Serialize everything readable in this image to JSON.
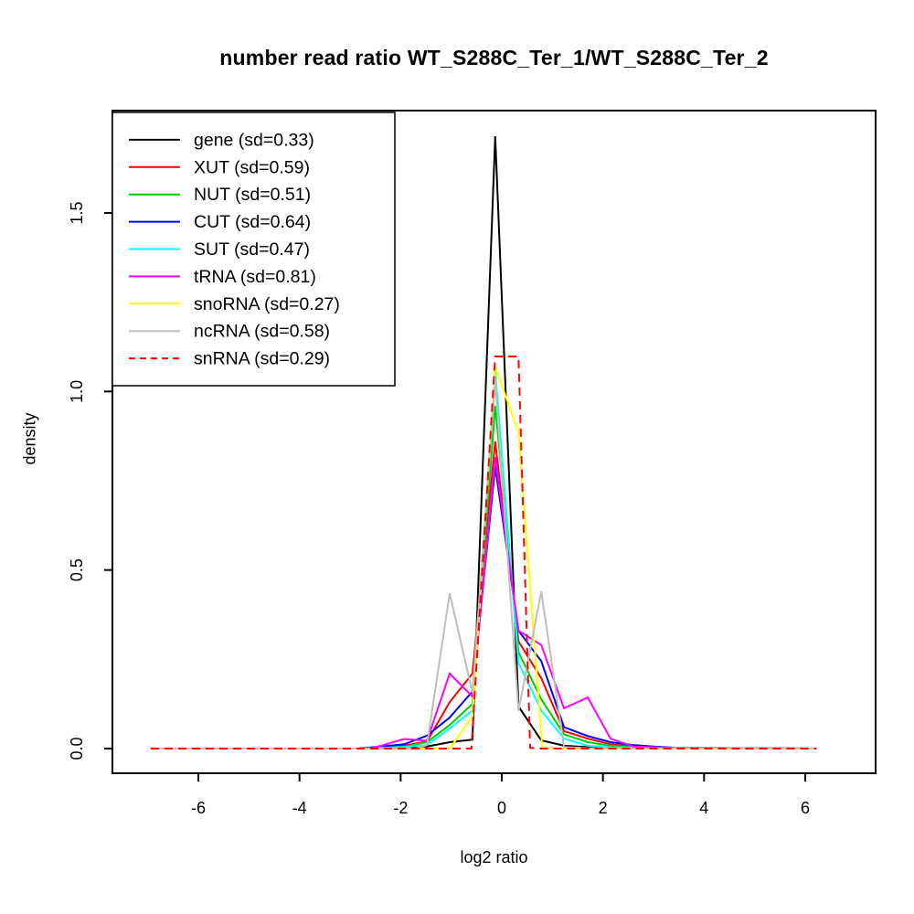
{
  "chart_data": {
    "type": "line",
    "title": "number read ratio WT_S288C_Ter_1/WT_S288C_Ter_2",
    "xlabel": "log2 ratio",
    "ylabel": "density",
    "xlim": [
      -7.7,
      7.4
    ],
    "ylim": [
      0,
      1.86
    ],
    "x_ticks": [
      -6,
      -4,
      -2,
      0,
      2,
      4,
      6
    ],
    "x_tick_labels": [
      "-6",
      "-4",
      "-2",
      "0",
      "2",
      "4",
      "6"
    ],
    "y_ticks": [
      0.0,
      0.5,
      1.0,
      1.5
    ],
    "y_tick_labels": [
      "0.0",
      "0.5",
      "1.0",
      "1.5"
    ],
    "grid": false,
    "legend_position": "top-left",
    "axis_color": "#000000",
    "background_color": "#FFFFFF",
    "series": [
      {
        "name": "gene",
        "sd": "0.33",
        "label": "gene (sd=0.33)",
        "color": "#000000",
        "dash": false,
        "points": [
          [
            -6.94,
            0
          ],
          [
            -2.84,
            0
          ],
          [
            -2.39,
            0.002
          ],
          [
            -1.93,
            0.004
          ],
          [
            -1.48,
            0.006
          ],
          [
            -1.03,
            0.018
          ],
          [
            -0.58,
            0.025
          ],
          [
            -0.13,
            1.715
          ],
          [
            0.33,
            0.118
          ],
          [
            0.78,
            0.023
          ],
          [
            1.23,
            0.008
          ],
          [
            1.7,
            0.004
          ],
          [
            2.15,
            0.002
          ],
          [
            2.6,
            0.001
          ],
          [
            6.22,
            0
          ]
        ]
      },
      {
        "name": "XUT",
        "sd": "0.59",
        "label": "XUT (sd=0.59)",
        "color": "#FF0000",
        "dash": false,
        "points": [
          [
            -6.94,
            0
          ],
          [
            -2.84,
            0
          ],
          [
            -2.39,
            0.005
          ],
          [
            -1.93,
            0.008
          ],
          [
            -1.48,
            0.02
          ],
          [
            -1.03,
            0.13
          ],
          [
            -0.58,
            0.21
          ],
          [
            -0.13,
            0.86
          ],
          [
            0.33,
            0.3
          ],
          [
            0.78,
            0.197
          ],
          [
            1.23,
            0.049
          ],
          [
            1.7,
            0.028
          ],
          [
            2.15,
            0.012
          ],
          [
            2.6,
            0.005
          ],
          [
            3.06,
            0.002
          ],
          [
            3.51,
            0.001
          ],
          [
            6.22,
            0
          ]
        ]
      },
      {
        "name": "NUT",
        "sd": "0.51",
        "label": "NUT (sd=0.51)",
        "color": "#00CD00",
        "dash": false,
        "points": [
          [
            -6.94,
            0
          ],
          [
            -2.84,
            0
          ],
          [
            -2.39,
            0.003
          ],
          [
            -1.93,
            0.005
          ],
          [
            -1.48,
            0.018
          ],
          [
            -1.03,
            0.066
          ],
          [
            -0.58,
            0.125
          ],
          [
            -0.13,
            0.96
          ],
          [
            0.33,
            0.27
          ],
          [
            0.78,
            0.138
          ],
          [
            1.23,
            0.04
          ],
          [
            1.7,
            0.018
          ],
          [
            2.15,
            0.008
          ],
          [
            2.6,
            0.003
          ],
          [
            6.22,
            0
          ]
        ]
      },
      {
        "name": "CUT",
        "sd": "0.64",
        "label": "CUT (sd=0.64)",
        "color": "#0000FF",
        "dash": false,
        "points": [
          [
            -6.94,
            0
          ],
          [
            -2.84,
            0
          ],
          [
            -2.39,
            0.006
          ],
          [
            -1.93,
            0.012
          ],
          [
            -1.48,
            0.036
          ],
          [
            -1.03,
            0.087
          ],
          [
            -0.58,
            0.16
          ],
          [
            -0.13,
            0.79
          ],
          [
            0.33,
            0.33
          ],
          [
            0.78,
            0.245
          ],
          [
            1.23,
            0.06
          ],
          [
            1.7,
            0.035
          ],
          [
            2.15,
            0.018
          ],
          [
            2.6,
            0.01
          ],
          [
            3.06,
            0.005
          ],
          [
            3.51,
            0.002
          ],
          [
            6.22,
            0
          ]
        ]
      },
      {
        "name": "SUT",
        "sd": "0.47",
        "label": "SUT (sd=0.47)",
        "color": "#00FFFF",
        "dash": false,
        "points": [
          [
            -6.94,
            0
          ],
          [
            -2.84,
            0
          ],
          [
            -2.39,
            0.002
          ],
          [
            -1.93,
            0.004
          ],
          [
            -1.48,
            0.01
          ],
          [
            -1.03,
            0.056
          ],
          [
            -0.58,
            0.107
          ],
          [
            -0.13,
            1.06
          ],
          [
            0.33,
            0.24
          ],
          [
            0.78,
            0.107
          ],
          [
            1.23,
            0.028
          ],
          [
            1.7,
            0.008
          ],
          [
            2.15,
            0.003
          ],
          [
            6.22,
            0
          ]
        ]
      },
      {
        "name": "tRNA",
        "sd": "0.81",
        "label": "tRNA (sd=0.81)",
        "color": "#FF00FF",
        "dash": false,
        "points": [
          [
            -6.94,
            0
          ],
          [
            -2.6,
            0
          ],
          [
            -2.39,
            0.008
          ],
          [
            -1.93,
            0.027
          ],
          [
            -1.48,
            0.022
          ],
          [
            -1.03,
            0.21
          ],
          [
            -0.58,
            0.146
          ],
          [
            -0.13,
            0.816
          ],
          [
            0.33,
            0.33
          ],
          [
            0.78,
            0.29
          ],
          [
            1.23,
            0.113
          ],
          [
            1.7,
            0.143
          ],
          [
            2.15,
            0.028
          ],
          [
            2.6,
            0.006
          ],
          [
            3.06,
            0.003
          ],
          [
            3.51,
            0.001
          ],
          [
            6.22,
            0
          ]
        ]
      },
      {
        "name": "snoRNA",
        "sd": "0.27",
        "label": "snoRNA (sd=0.27)",
        "color": "#FFFF00",
        "dash": false,
        "points": [
          [
            -6.94,
            0
          ],
          [
            -1.03,
            0
          ],
          [
            -0.58,
            0.09
          ],
          [
            -0.13,
            1.07
          ],
          [
            0.33,
            0.885
          ],
          [
            0.8,
            0.002
          ],
          [
            1.23,
            0
          ],
          [
            6.22,
            0
          ]
        ]
      },
      {
        "name": "ncRNA",
        "sd": "0.58",
        "label": "ncRNA (sd=0.58)",
        "color": "#BEBEBE",
        "dash": false,
        "points": [
          [
            -6.94,
            0
          ],
          [
            -1.7,
            0
          ],
          [
            -1.48,
            0.01
          ],
          [
            -1.03,
            0.435
          ],
          [
            -0.58,
            0.156
          ],
          [
            -0.13,
            1.03
          ],
          [
            0.33,
            0.105
          ],
          [
            0.78,
            0.44
          ],
          [
            1.23,
            0.004
          ],
          [
            1.7,
            0.001
          ],
          [
            6.22,
            0
          ]
        ]
      },
      {
        "name": "snRNA",
        "sd": "0.29",
        "label": "snRNA (sd=0.29)",
        "color": "#FF0000",
        "dash": true,
        "points": [
          [
            -6.94,
            0
          ],
          [
            -0.6,
            0
          ],
          [
            -0.13,
            1.098
          ],
          [
            0.33,
            1.098
          ],
          [
            0.56,
            0.002
          ],
          [
            0.78,
            0
          ],
          [
            6.22,
            0
          ]
        ]
      }
    ]
  }
}
